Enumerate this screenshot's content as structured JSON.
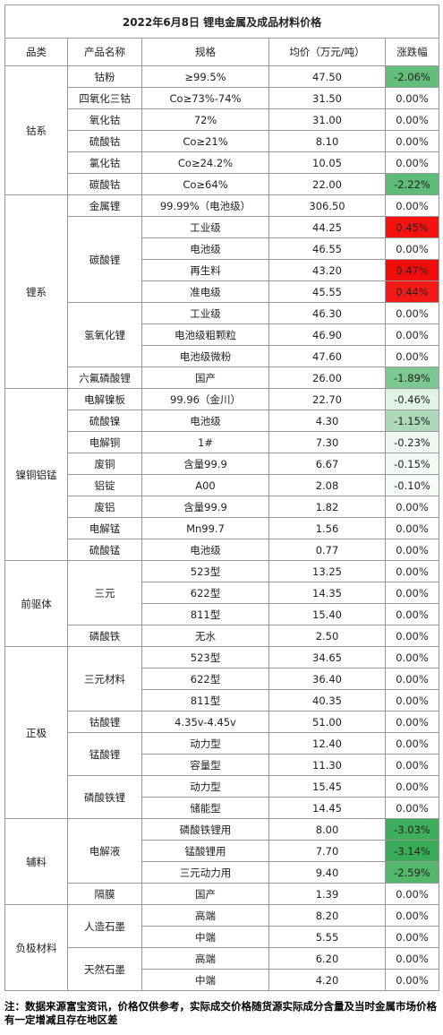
{
  "header": {
    "title": "2022年6月8日 锂电金属及成品材料价格"
  },
  "columns": [
    "品类",
    "产品名称",
    "规格",
    "均价（万元/吨）",
    "涨跌幅"
  ],
  "groups": [
    {
      "name": "钴系",
      "products": [
        {
          "name": "钴粉",
          "items": [
            {
              "spec": "≥99.5%",
              "price": "47.50",
              "change": "-2.06%",
              "bg": "#63be7b"
            }
          ]
        },
        {
          "name": "四氧化三钴",
          "items": [
            {
              "spec": "Co≥73%-74%",
              "price": "31.50",
              "change": "0.00%"
            }
          ]
        },
        {
          "name": "氧化钴",
          "items": [
            {
              "spec": "72%",
              "price": "31.00",
              "change": "0.00%"
            }
          ]
        },
        {
          "name": "硫酸钴",
          "items": [
            {
              "spec": "Co≥21%",
              "price": "8.10",
              "change": "0.00%"
            }
          ]
        },
        {
          "name": "氯化钴",
          "items": [
            {
              "spec": "Co≥24.2%",
              "price": "10.05",
              "change": "0.00%"
            }
          ]
        },
        {
          "name": "碳酸钴",
          "items": [
            {
              "spec": "Co≥64%",
              "price": "22.00",
              "change": "-2.22%",
              "bg": "#5fbc78"
            }
          ]
        }
      ]
    },
    {
      "name": "锂系",
      "products": [
        {
          "name": "金属锂",
          "items": [
            {
              "spec": "99.99%（电池级）",
              "price": "306.50",
              "change": "0.00%"
            }
          ]
        },
        {
          "name": "碳酸锂",
          "items": [
            {
              "spec": "工业级",
              "price": "44.25",
              "change": "0.45%",
              "bg": "#f8120f"
            },
            {
              "spec": "电池级",
              "price": "46.55",
              "change": "0.00%"
            },
            {
              "spec": "再生料",
              "price": "43.20",
              "change": "0.47%",
              "bg": "#f20d0d"
            },
            {
              "spec": "准电级",
              "price": "45.55",
              "change": "0.44%",
              "bg": "#f41a17"
            }
          ]
        },
        {
          "name": "氢氧化锂",
          "items": [
            {
              "spec": "工业级",
              "price": "46.30",
              "change": "0.00%"
            },
            {
              "spec": "电池级粗颗粒",
              "price": "46.90",
              "change": "0.00%"
            },
            {
              "spec": "电池级微粉",
              "price": "47.60",
              "change": "0.00%"
            }
          ]
        },
        {
          "name": "六氟磷酸锂",
          "items": [
            {
              "spec": "国产",
              "price": "26.00",
              "change": "-1.89%",
              "bg": "#7cc891"
            }
          ]
        }
      ]
    },
    {
      "name": "镍铜铝锰",
      "products": [
        {
          "name": "电解镍板",
          "items": [
            {
              "spec": "99.96（金川）",
              "price": "22.70",
              "change": "-0.46%",
              "bg": "#e1f2e6"
            }
          ]
        },
        {
          "name": "硫酸镍",
          "items": [
            {
              "spec": "电池级",
              "price": "4.30",
              "change": "-1.15%",
              "bg": "#add9b9"
            }
          ]
        },
        {
          "name": "电解铜",
          "items": [
            {
              "spec": "1#",
              "price": "7.30",
              "change": "-0.23%",
              "bg": "#eff8f2"
            }
          ]
        },
        {
          "name": "废铜",
          "items": [
            {
              "spec": "含量99.9",
              "price": "6.67",
              "change": "-0.15%",
              "bg": "#f3faf5"
            }
          ]
        },
        {
          "name": "铝锭",
          "items": [
            {
              "spec": "A00",
              "price": "2.08",
              "change": "-0.10%",
              "bg": "#f6fbf8"
            }
          ]
        },
        {
          "name": "废铝",
          "items": [
            {
              "spec": "含量99.9",
              "price": "1.82",
              "change": "0.00%"
            }
          ]
        },
        {
          "name": "电解锰",
          "items": [
            {
              "spec": "Mn99.7",
              "price": "1.56",
              "change": "0.00%"
            }
          ]
        },
        {
          "name": "硫酸锰",
          "items": [
            {
              "spec": "电池级",
              "price": "0.77",
              "change": "0.00%"
            }
          ]
        }
      ]
    },
    {
      "name": "前驱体",
      "products": [
        {
          "name": "三元",
          "items": [
            {
              "spec": "523型",
              "price": "13.25",
              "change": "0.00%"
            },
            {
              "spec": "622型",
              "price": "14.35",
              "change": "0.00%"
            },
            {
              "spec": "811型",
              "price": "15.40",
              "change": "0.00%"
            }
          ]
        },
        {
          "name": "磷酸铁",
          "items": [
            {
              "spec": "无水",
              "price": "2.50",
              "change": "0.00%"
            }
          ]
        }
      ]
    },
    {
      "name": "正极",
      "products": [
        {
          "name": "三元材料",
          "items": [
            {
              "spec": "523型",
              "price": "34.65",
              "change": "0.00%"
            },
            {
              "spec": "622型",
              "price": "36.40",
              "change": "0.00%"
            },
            {
              "spec": "811型",
              "price": "40.35",
              "change": "0.00%"
            }
          ]
        },
        {
          "name": "钴酸锂",
          "items": [
            {
              "spec": "4.35v-4.45v",
              "price": "51.00",
              "change": "0.00%"
            }
          ]
        },
        {
          "name": "锰酸锂",
          "items": [
            {
              "spec": "动力型",
              "price": "12.40",
              "change": "0.00%"
            },
            {
              "spec": "容量型",
              "price": "11.30",
              "change": "0.00%"
            }
          ]
        },
        {
          "name": "磷酸铁锂",
          "items": [
            {
              "spec": "动力型",
              "price": "15.45",
              "change": "0.00%"
            },
            {
              "spec": "储能型",
              "price": "14.45",
              "change": "0.00%"
            }
          ]
        }
      ]
    },
    {
      "name": "辅料",
      "products": [
        {
          "name": "电解液",
          "items": [
            {
              "spec": "磷酸铁锂用",
              "price": "8.00",
              "change": "-3.03%",
              "bg": "#3fae5c"
            },
            {
              "spec": "锰酸锂用",
              "price": "7.70",
              "change": "-3.14%",
              "bg": "#3aab58"
            },
            {
              "spec": "三元动力用",
              "price": "9.40",
              "change": "-2.59%",
              "bg": "#52b66b"
            }
          ]
        },
        {
          "name": "隔膜",
          "items": [
            {
              "spec": "国产",
              "price": "1.39",
              "change": "0.00%"
            }
          ]
        }
      ]
    },
    {
      "name": "负极材料",
      "products": [
        {
          "name": "人造石墨",
          "items": [
            {
              "spec": "高端",
              "price": "8.20",
              "change": "0.00%"
            },
            {
              "spec": "中端",
              "price": "5.55",
              "change": "0.00%"
            }
          ]
        },
        {
          "name": "天然石墨",
          "items": [
            {
              "spec": "高端",
              "price": "6.20",
              "change": "0.00%"
            },
            {
              "spec": "中端",
              "price": "4.20",
              "change": "0.00%"
            }
          ]
        }
      ]
    }
  ],
  "footnote": "注：数据来源富宝资讯，价格仅供参考，实际成交价格随货源实际成分含量及当时金属市场价格有一定增减且存在地区差"
}
